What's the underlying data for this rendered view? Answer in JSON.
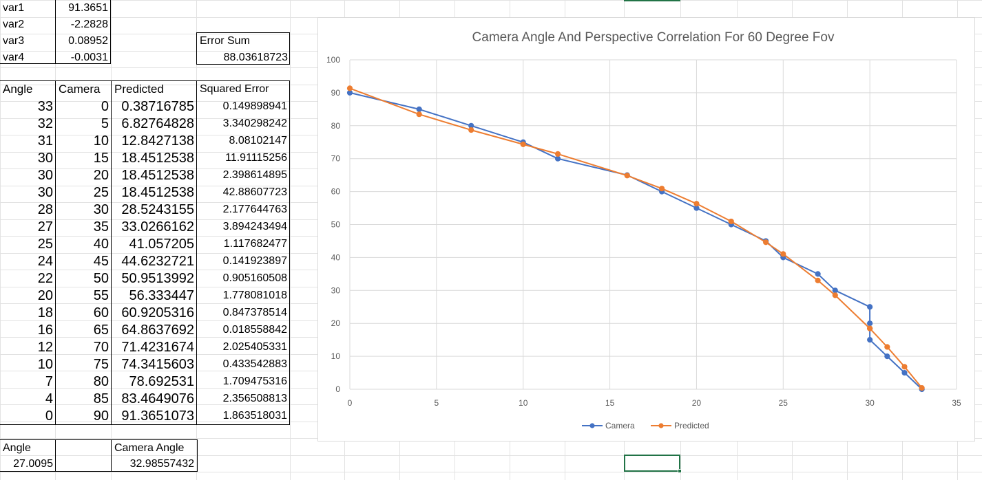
{
  "vars": [
    {
      "name": "var1",
      "value": "91.3651"
    },
    {
      "name": "var2",
      "value": "-2.2828"
    },
    {
      "name": "var3",
      "value": "0.08952"
    },
    {
      "name": "var4",
      "value": "-0.0031"
    }
  ],
  "error_sum": {
    "label": "Error Sum",
    "value": "88.03618723"
  },
  "table": {
    "headers": [
      "Angle",
      "Camera",
      "Predicted",
      "Squared Error"
    ],
    "rows": [
      [
        "33",
        "0",
        "0.38716785",
        "0.149898941"
      ],
      [
        "32",
        "5",
        "6.82764828",
        "3.340298242"
      ],
      [
        "31",
        "10",
        "12.8427138",
        "8.08102147"
      ],
      [
        "30",
        "15",
        "18.4512538",
        "11.91115256"
      ],
      [
        "30",
        "20",
        "18.4512538",
        "2.398614895"
      ],
      [
        "30",
        "25",
        "18.4512538",
        "42.88607723"
      ],
      [
        "28",
        "30",
        "28.5243155",
        "2.177644763"
      ],
      [
        "27",
        "35",
        "33.0266162",
        "3.894243494"
      ],
      [
        "25",
        "40",
        "41.057205",
        "1.117682477"
      ],
      [
        "24",
        "45",
        "44.6232721",
        "0.141923897"
      ],
      [
        "22",
        "50",
        "50.9513992",
        "0.905160508"
      ],
      [
        "20",
        "55",
        "56.333447",
        "1.778081018"
      ],
      [
        "18",
        "60",
        "60.9205316",
        "0.847378514"
      ],
      [
        "16",
        "65",
        "64.8637692",
        "0.018558842"
      ],
      [
        "12",
        "70",
        "71.4231674",
        "2.025405331"
      ],
      [
        "10",
        "75",
        "74.3415603",
        "0.433542883"
      ],
      [
        "7",
        "80",
        "78.692531",
        "1.709475316"
      ],
      [
        "4",
        "85",
        "83.4649076",
        "2.356508813"
      ],
      [
        "0",
        "90",
        "91.3651073",
        "1.863518031"
      ]
    ]
  },
  "bottom": {
    "angle_label": "Angle",
    "angle_value": "27.0095",
    "camera_angle_label": "Camera Angle",
    "camera_angle_value": "32.98557432"
  },
  "colors": {
    "camera": "#4472C4",
    "predicted": "#ED7D31",
    "gridline": "#d9d9d9",
    "selection": "#217346"
  },
  "chart_data": {
    "type": "scatter",
    "title": "Camera Angle And Perspective Correlation For 60 Degree Fov",
    "xlabel": "",
    "ylabel": "",
    "xlim": [
      0,
      35
    ],
    "ylim": [
      0,
      100
    ],
    "x_ticks": [
      "0",
      "5",
      "10",
      "15",
      "20",
      "25",
      "30",
      "35"
    ],
    "y_ticks": [
      "0",
      "10",
      "20",
      "30",
      "40",
      "50",
      "60",
      "70",
      "80",
      "90",
      "100"
    ],
    "grid": true,
    "legend_position": "bottom",
    "series": [
      {
        "name": "Camera",
        "color": "#4472C4",
        "x": [
          33,
          32,
          31,
          30,
          30,
          30,
          28,
          27,
          25,
          24,
          22,
          20,
          18,
          16,
          12,
          10,
          7,
          4,
          0
        ],
        "y": [
          0,
          5,
          10,
          15,
          20,
          25,
          30,
          35,
          40,
          45,
          50,
          55,
          60,
          65,
          70,
          75,
          80,
          85,
          90
        ]
      },
      {
        "name": "Predicted",
        "color": "#ED7D31",
        "x": [
          33,
          32,
          31,
          30,
          30,
          30,
          28,
          27,
          25,
          24,
          22,
          20,
          18,
          16,
          12,
          10,
          7,
          4,
          0
        ],
        "y": [
          0.38716785,
          6.82764828,
          12.8427138,
          18.4512538,
          18.4512538,
          18.4512538,
          28.5243155,
          33.0266162,
          41.057205,
          44.6232721,
          50.9513992,
          56.333447,
          60.9205316,
          64.8637692,
          71.4231674,
          74.3415603,
          78.692531,
          83.4649076,
          91.3651073
        ]
      }
    ]
  }
}
